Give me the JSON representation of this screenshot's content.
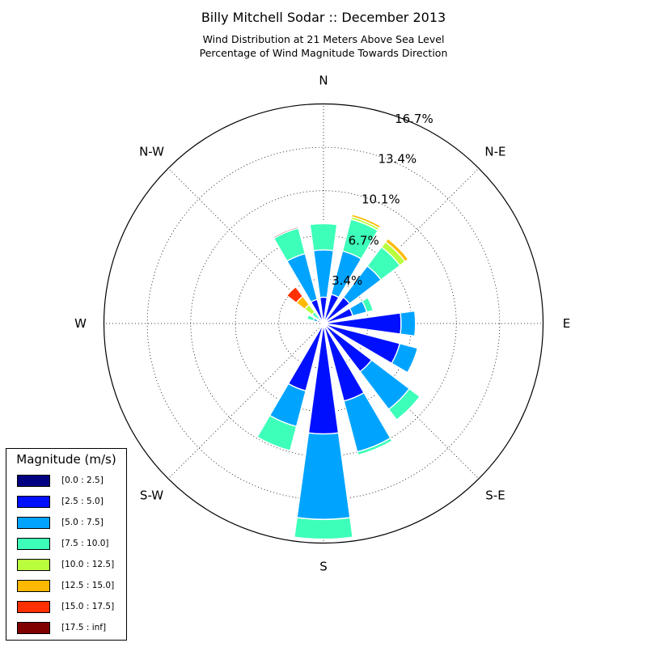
{
  "title": "Billy Mitchell Sodar :: December 2013",
  "subtitle_lines": [
    "Wind Distribution at 21 Meters Above Sea Level",
    "Percentage of Wind Magnitude Towards Direction"
  ],
  "chart_data": {
    "type": "windrose",
    "title": "Billy Mitchell Sodar :: December 2013",
    "direction_labels": [
      "N",
      "N-E",
      "E",
      "S-E",
      "S",
      "S-W",
      "W",
      "N-W"
    ],
    "radial_ticks": [
      3.4,
      6.7,
      10.1,
      13.4,
      16.7
    ],
    "radial_tick_labels": [
      "3.4%",
      "6.7%",
      "10.1%",
      "13.4%",
      "16.7%"
    ],
    "radial_max": 16.7,
    "sectors_deg": [
      0,
      22.5,
      45,
      67.5,
      90,
      112.5,
      135,
      157.5,
      180,
      202.5,
      225,
      247.5,
      270,
      292.5,
      315,
      337.5
    ],
    "legend_title": "Magnitude (m/s)",
    "bins": [
      {
        "label": "[0.0 : 2.5]",
        "color": "#000080"
      },
      {
        "label": "[2.5 : 5.0]",
        "color": "#0010ff"
      },
      {
        "label": "[5.0 : 7.5]",
        "color": "#00a4ff"
      },
      {
        "label": "[7.5 : 10.0]",
        "color": "#3dffb9"
      },
      {
        "label": "[10.0 : 12.5]",
        "color": "#b9ff3d"
      },
      {
        "label": "[12.5 : 15.0]",
        "color": "#ffb900"
      },
      {
        "label": "[15.0 : 17.5]",
        "color": "#ff3000"
      },
      {
        "label": "[17.5 : inf]",
        "color": "#800000"
      }
    ],
    "cumulative_values": [
      [
        0.25,
        2.0,
        5.6,
        7.6,
        7.6,
        7.6,
        7.65,
        7.65
      ],
      [
        0.3,
        2.3,
        5.7,
        8.2,
        8.4,
        8.6,
        8.65,
        8.65
      ],
      [
        0.3,
        2.5,
        5.5,
        7.3,
        7.8,
        8.1,
        8.15,
        8.15
      ],
      [
        0.3,
        2.3,
        3.4,
        3.9,
        3.9,
        3.9,
        3.9,
        3.9
      ],
      [
        0.25,
        5.9,
        7.0,
        7.0,
        7.0,
        7.0,
        7.0,
        7.0
      ],
      [
        0.25,
        6.0,
        7.4,
        7.4,
        7.4,
        7.4,
        7.4,
        7.4
      ],
      [
        0.3,
        4.6,
        8.2,
        9.2,
        9.2,
        9.2,
        9.2,
        9.2
      ],
      [
        0.3,
        6.1,
        10.1,
        10.35,
        10.35,
        10.35,
        10.35,
        10.35
      ],
      [
        0.3,
        8.4,
        14.9,
        16.4,
        16.4,
        16.4,
        16.4,
        16.4
      ],
      [
        0.3,
        5.3,
        8.1,
        10.0,
        10.0,
        10.0,
        10.0,
        10.0
      ],
      [
        0.1,
        0.3,
        0.3,
        0.3,
        0.3,
        0.3,
        0.3,
        0.3
      ],
      [
        0.05,
        0.1,
        0.1,
        0.1,
        0.1,
        0.1,
        0.1,
        0.1
      ],
      [
        0.05,
        0.15,
        0.15,
        0.15,
        0.15,
        0.15,
        0.15,
        0.15
      ],
      [
        0.1,
        0.5,
        0.8,
        1.3,
        1.3,
        1.3,
        1.3,
        1.3
      ],
      [
        0.1,
        0.5,
        0.5,
        1.1,
        1.8,
        2.6,
        3.5,
        3.5
      ],
      [
        0.2,
        1.9,
        5.5,
        7.5,
        7.5,
        7.5,
        7.5,
        7.6
      ]
    ]
  }
}
